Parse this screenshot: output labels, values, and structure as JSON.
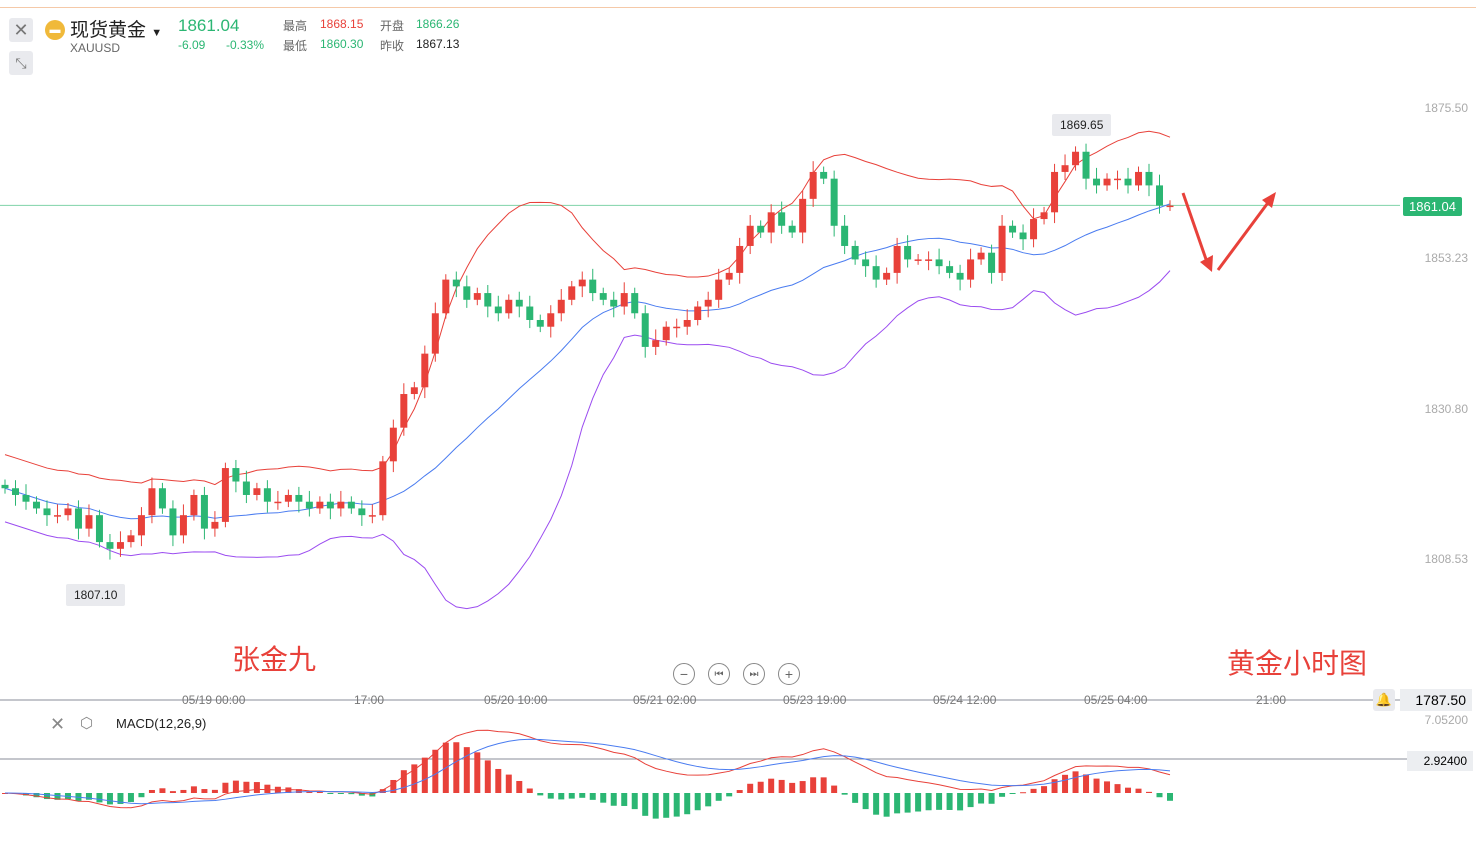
{
  "header": {
    "name": "现货黄金",
    "symbol": "XAUUSD",
    "price": "1861.04",
    "change": "-6.09",
    "change_pct": "-0.33%",
    "high_label": "最高",
    "high": "1868.15",
    "open_label": "开盘",
    "open": "1866.26",
    "low_label": "最低",
    "low": "1860.30",
    "prev_label": "昨收",
    "prev_close": "1867.13"
  },
  "icons": {
    "close": "close-icon",
    "collapse": "collapse-icon",
    "gold": "gold-bar-icon",
    "dropdown": "caret-down-icon"
  },
  "chart_data": {
    "type": "candlestick",
    "yaxis_ticks": [
      "1875.50",
      "1853.23",
      "1830.80",
      "1808.53"
    ],
    "ylim": [
      1808.53,
      1875.5
    ],
    "current_price": "1861.04",
    "max_label": "1869.65",
    "min_label": "1807.10",
    "xaxis_ticks": [
      "05/19 00:00",
      "17:00",
      "05/20 10:00",
      "05/21 02:00",
      "05/23 19:00",
      "05/24 12:00",
      "05/25 04:00",
      "21:00"
    ],
    "bottom_price": "1787.50",
    "closes": [
      1819,
      1818,
      1817,
      1816,
      1815,
      1815,
      1816,
      1813,
      1815,
      1811,
      1810,
      1811,
      1812,
      1815,
      1819,
      1816,
      1812,
      1815,
      1818,
      1813,
      1814,
      1822,
      1820,
      1818,
      1819,
      1817,
      1817,
      1818,
      1817,
      1816,
      1817,
      1816,
      1817,
      1816,
      1815,
      1815,
      1823,
      1828,
      1833,
      1834,
      1839,
      1845,
      1850,
      1849,
      1847,
      1848,
      1846,
      1845,
      1847,
      1846,
      1844,
      1843,
      1845,
      1847,
      1849,
      1850,
      1848,
      1847,
      1846,
      1848,
      1845,
      1840,
      1841,
      1843,
      1843,
      1844,
      1846,
      1847,
      1850,
      1851,
      1855,
      1858,
      1857,
      1860,
      1858,
      1857,
      1862,
      1866,
      1865,
      1858,
      1855,
      1853,
      1852,
      1850,
      1851,
      1855,
      1853,
      1853,
      1853,
      1852,
      1851,
      1850,
      1853,
      1854,
      1851,
      1858,
      1857,
      1856,
      1859,
      1860,
      1866,
      1867,
      1869,
      1865,
      1864,
      1865,
      1865,
      1864,
      1866,
      1864,
      1861,
      1861
    ],
    "colors": {
      "up": "#e8413a",
      "down": "#2bb673",
      "upper": "#e8413a",
      "mid": "#4a7cf0",
      "lower": "#9b4cf0"
    }
  },
  "macd": {
    "label": "MACD(12,26,9)",
    "ticks": [
      "7.05200",
      "2.92400"
    ]
  },
  "controls": {
    "zoom_out": "−",
    "prev": "⏮",
    "next": "⏭",
    "zoom_in": "+"
  },
  "annotations": {
    "author": "张金九",
    "title": "黄金小时图"
  }
}
